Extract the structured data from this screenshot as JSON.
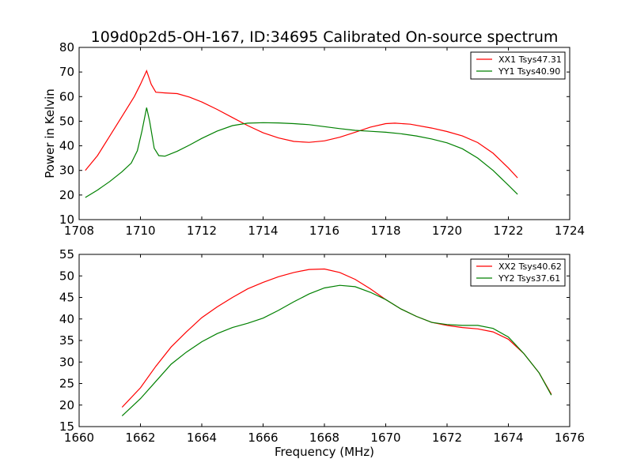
{
  "chart_data": [
    {
      "type": "line",
      "title": "109d0p2d5-OH-167, ID:34695 Calibrated On-source spectrum",
      "xlabel": "",
      "ylabel": "Power in Kelvin",
      "xlim": [
        1708,
        1724
      ],
      "ylim": [
        10,
        80
      ],
      "xticks": [
        "1708",
        "1710",
        "1712",
        "1714",
        "1716",
        "1718",
        "1720",
        "1722",
        "1724"
      ],
      "yticks": [
        "10",
        "20",
        "30",
        "40",
        "50",
        "60",
        "70",
        "80"
      ],
      "legend_position": "top-right",
      "series": [
        {
          "name": "XX1 Tsys47.31",
          "color": "#ff0000",
          "points": [
            [
              1708.2,
              30
            ],
            [
              1708.6,
              36
            ],
            [
              1709,
              44
            ],
            [
              1709.4,
              52
            ],
            [
              1709.8,
              60
            ],
            [
              1710.0,
              65
            ],
            [
              1710.2,
              70.5
            ],
            [
              1710.35,
              65
            ],
            [
              1710.5,
              61.8
            ],
            [
              1710.8,
              61.5
            ],
            [
              1711.2,
              61.2
            ],
            [
              1711.6,
              59.8
            ],
            [
              1712,
              57.8
            ],
            [
              1712.5,
              54.8
            ],
            [
              1713,
              51.5
            ],
            [
              1713.5,
              48.2
            ],
            [
              1714,
              45.3
            ],
            [
              1714.5,
              43.2
            ],
            [
              1715,
              41.8
            ],
            [
              1715.5,
              41.4
            ],
            [
              1716,
              42
            ],
            [
              1716.5,
              43.5
            ],
            [
              1717,
              45.5
            ],
            [
              1717.5,
              47.6
            ],
            [
              1718,
              49
            ],
            [
              1718.3,
              49.2
            ],
            [
              1718.8,
              48.8
            ],
            [
              1719.5,
              47.2
            ],
            [
              1720,
              45.8
            ],
            [
              1720.5,
              44
            ],
            [
              1721,
              41.3
            ],
            [
              1721.5,
              37
            ],
            [
              1722,
              31
            ],
            [
              1722.3,
              27
            ]
          ]
        },
        {
          "name": "YY1 Tsys40.90",
          "color": "#008000",
          "points": [
            [
              1708.2,
              19
            ],
            [
              1708.6,
              22
            ],
            [
              1709,
              25.5
            ],
            [
              1709.4,
              29.5
            ],
            [
              1709.7,
              33
            ],
            [
              1709.9,
              38
            ],
            [
              1710.05,
              46
            ],
            [
              1710.2,
              55.5
            ],
            [
              1710.3,
              50
            ],
            [
              1710.45,
              39
            ],
            [
              1710.6,
              36
            ],
            [
              1710.8,
              35.8
            ],
            [
              1711.2,
              37.8
            ],
            [
              1711.6,
              40.3
            ],
            [
              1712,
              43
            ],
            [
              1712.5,
              46
            ],
            [
              1713,
              48.2
            ],
            [
              1713.5,
              49.2
            ],
            [
              1714,
              49.4
            ],
            [
              1714.5,
              49.3
            ],
            [
              1715,
              49
            ],
            [
              1715.5,
              48.6
            ],
            [
              1716,
              47.8
            ],
            [
              1716.5,
              47
            ],
            [
              1717,
              46.3
            ],
            [
              1717.5,
              45.9
            ],
            [
              1718,
              45.5
            ],
            [
              1718.5,
              44.9
            ],
            [
              1719,
              44
            ],
            [
              1719.5,
              42.8
            ],
            [
              1720,
              41.2
            ],
            [
              1720.5,
              38.8
            ],
            [
              1721,
              35
            ],
            [
              1721.5,
              30
            ],
            [
              1722,
              24
            ],
            [
              1722.3,
              20.3
            ]
          ]
        }
      ]
    },
    {
      "type": "line",
      "title": "",
      "xlabel": "Frequency (MHz)",
      "ylabel": "",
      "xlim": [
        1660,
        1676
      ],
      "ylim": [
        15,
        55
      ],
      "xticks": [
        "1660",
        "1662",
        "1664",
        "1666",
        "1668",
        "1670",
        "1672",
        "1674",
        "1676"
      ],
      "yticks": [
        "15",
        "20",
        "25",
        "30",
        "35",
        "40",
        "45",
        "50",
        "55"
      ],
      "legend_position": "top-right",
      "series": [
        {
          "name": "XX2 Tsys40.62",
          "color": "#ff0000",
          "points": [
            [
              1661.4,
              19.5
            ],
            [
              1662,
              24
            ],
            [
              1662.5,
              29
            ],
            [
              1663,
              33.5
            ],
            [
              1663.5,
              37
            ],
            [
              1664,
              40.3
            ],
            [
              1664.5,
              42.8
            ],
            [
              1665,
              45
            ],
            [
              1665.5,
              47
            ],
            [
              1666,
              48.5
            ],
            [
              1666.5,
              49.8
            ],
            [
              1667,
              50.8
            ],
            [
              1667.5,
              51.5
            ],
            [
              1668,
              51.6
            ],
            [
              1668.5,
              50.8
            ],
            [
              1669,
              49.2
            ],
            [
              1669.5,
              47
            ],
            [
              1670,
              44.5
            ],
            [
              1670.5,
              42.3
            ],
            [
              1671,
              40.6
            ],
            [
              1671.5,
              39.2
            ],
            [
              1672,
              38.5
            ],
            [
              1672.5,
              38
            ],
            [
              1673,
              37.7
            ],
            [
              1673.5,
              37
            ],
            [
              1674,
              35.3
            ],
            [
              1674.5,
              32
            ],
            [
              1675,
              27.5
            ],
            [
              1675.4,
              22.5
            ]
          ]
        },
        {
          "name": "YY2 Tsys37.61",
          "color": "#008000",
          "points": [
            [
              1661.4,
              17.5
            ],
            [
              1662,
              21.5
            ],
            [
              1662.5,
              25.5
            ],
            [
              1663,
              29.5
            ],
            [
              1663.5,
              32.3
            ],
            [
              1664,
              34.7
            ],
            [
              1664.5,
              36.6
            ],
            [
              1665,
              38
            ],
            [
              1665.5,
              39
            ],
            [
              1666,
              40.2
            ],
            [
              1666.5,
              42
            ],
            [
              1667,
              44
            ],
            [
              1667.5,
              45.8
            ],
            [
              1668,
              47.2
            ],
            [
              1668.5,
              47.8
            ],
            [
              1669,
              47.5
            ],
            [
              1669.5,
              46.2
            ],
            [
              1670,
              44.5
            ],
            [
              1670.5,
              42.3
            ],
            [
              1671,
              40.6
            ],
            [
              1671.5,
              39.2
            ],
            [
              1672,
              38.7
            ],
            [
              1672.5,
              38.5
            ],
            [
              1673,
              38.5
            ],
            [
              1673.5,
              37.8
            ],
            [
              1674,
              35.8
            ],
            [
              1674.5,
              32
            ],
            [
              1675,
              27.5
            ],
            [
              1675.4,
              22.3
            ]
          ]
        }
      ]
    }
  ]
}
